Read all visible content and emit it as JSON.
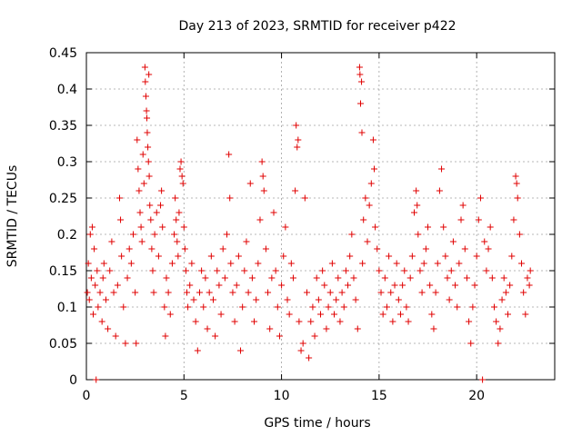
{
  "chart_data": {
    "type": "scatter",
    "title": "Day 213 of 2023, SRMTID for receiver p422",
    "xlabel": "GPS time / hours",
    "ylabel": "SRMTID / TECUs",
    "xlim": [
      0,
      24
    ],
    "ylim": [
      0,
      0.45
    ],
    "xticks": [
      0,
      5,
      10,
      15,
      20
    ],
    "xtick_labels": [
      "0",
      "5",
      "10",
      "15",
      "20"
    ],
    "yticks": [
      0,
      0.05,
      0.1,
      0.15,
      0.2,
      0.25,
      0.3,
      0.35,
      0.4,
      0.45
    ],
    "ytick_labels": [
      "0",
      "0.05",
      "0.1",
      "0.15",
      "0.2",
      "0.25",
      "0.3",
      "0.35",
      "0.4",
      "0.45"
    ],
    "grid": true,
    "marker": "+",
    "marker_color": "#e00000",
    "series": [
      {
        "name": "SRMTID",
        "points": [
          [
            0.05,
            0.12
          ],
          [
            0.1,
            0.16
          ],
          [
            0.15,
            0.11
          ],
          [
            0.2,
            0.2
          ],
          [
            0.25,
            0.14
          ],
          [
            0.3,
            0.21
          ],
          [
            0.35,
            0.09
          ],
          [
            0.4,
            0.18
          ],
          [
            0.45,
            0.13
          ],
          [
            0.5,
            0.0
          ],
          [
            0.55,
            0.15
          ],
          [
            0.6,
            0.1
          ],
          [
            0.7,
            0.12
          ],
          [
            0.8,
            0.08
          ],
          [
            0.85,
            0.14
          ],
          [
            0.9,
            0.16
          ],
          [
            1.0,
            0.11
          ],
          [
            1.1,
            0.07
          ],
          [
            1.2,
            0.15
          ],
          [
            1.3,
            0.19
          ],
          [
            1.4,
            0.12
          ],
          [
            1.5,
            0.06
          ],
          [
            1.6,
            0.13
          ],
          [
            1.7,
            0.25
          ],
          [
            1.75,
            0.22
          ],
          [
            1.8,
            0.17
          ],
          [
            1.9,
            0.1
          ],
          [
            2.0,
            0.05
          ],
          [
            2.1,
            0.14
          ],
          [
            2.2,
            0.18
          ],
          [
            2.3,
            0.16
          ],
          [
            2.4,
            0.2
          ],
          [
            2.5,
            0.12
          ],
          [
            2.55,
            0.05
          ],
          [
            2.6,
            0.33
          ],
          [
            2.65,
            0.29
          ],
          [
            2.7,
            0.26
          ],
          [
            2.75,
            0.23
          ],
          [
            2.8,
            0.21
          ],
          [
            2.85,
            0.19
          ],
          [
            2.9,
            0.31
          ],
          [
            2.95,
            0.27
          ],
          [
            3.0,
            0.43
          ],
          [
            3.02,
            0.41
          ],
          [
            3.05,
            0.39
          ],
          [
            3.08,
            0.37
          ],
          [
            3.1,
            0.36
          ],
          [
            3.12,
            0.34
          ],
          [
            3.15,
            0.32
          ],
          [
            3.18,
            0.3
          ],
          [
            3.2,
            0.42
          ],
          [
            3.22,
            0.28
          ],
          [
            3.25,
            0.24
          ],
          [
            3.3,
            0.22
          ],
          [
            3.35,
            0.18
          ],
          [
            3.4,
            0.15
          ],
          [
            3.45,
            0.12
          ],
          [
            3.5,
            0.2
          ],
          [
            3.6,
            0.23
          ],
          [
            3.7,
            0.17
          ],
          [
            3.8,
            0.24
          ],
          [
            3.85,
            0.26
          ],
          [
            3.9,
            0.21
          ],
          [
            4.0,
            0.1
          ],
          [
            4.05,
            0.06
          ],
          [
            4.1,
            0.14
          ],
          [
            4.2,
            0.12
          ],
          [
            4.3,
            0.09
          ],
          [
            4.4,
            0.16
          ],
          [
            4.5,
            0.2
          ],
          [
            4.55,
            0.25
          ],
          [
            4.6,
            0.22
          ],
          [
            4.65,
            0.19
          ],
          [
            4.7,
            0.17
          ],
          [
            4.75,
            0.23
          ],
          [
            4.8,
            0.29
          ],
          [
            4.85,
            0.3
          ],
          [
            4.9,
            0.28
          ],
          [
            4.95,
            0.27
          ],
          [
            5.0,
            0.21
          ],
          [
            5.05,
            0.18
          ],
          [
            5.1,
            0.15
          ],
          [
            5.15,
            0.12
          ],
          [
            5.2,
            0.1
          ],
          [
            5.3,
            0.13
          ],
          [
            5.4,
            0.16
          ],
          [
            5.5,
            0.11
          ],
          [
            5.6,
            0.08
          ],
          [
            5.7,
            0.04
          ],
          [
            5.8,
            0.12
          ],
          [
            5.9,
            0.15
          ],
          [
            6.0,
            0.1
          ],
          [
            6.1,
            0.14
          ],
          [
            6.2,
            0.07
          ],
          [
            6.3,
            0.12
          ],
          [
            6.4,
            0.17
          ],
          [
            6.5,
            0.11
          ],
          [
            6.6,
            0.06
          ],
          [
            6.7,
            0.15
          ],
          [
            6.8,
            0.13
          ],
          [
            6.9,
            0.09
          ],
          [
            7.0,
            0.18
          ],
          [
            7.1,
            0.14
          ],
          [
            7.2,
            0.2
          ],
          [
            7.3,
            0.31
          ],
          [
            7.35,
            0.25
          ],
          [
            7.4,
            0.16
          ],
          [
            7.5,
            0.12
          ],
          [
            7.6,
            0.08
          ],
          [
            7.7,
            0.13
          ],
          [
            7.8,
            0.17
          ],
          [
            7.9,
            0.04
          ],
          [
            8.0,
            0.1
          ],
          [
            8.1,
            0.15
          ],
          [
            8.2,
            0.19
          ],
          [
            8.3,
            0.12
          ],
          [
            8.4,
            0.27
          ],
          [
            8.5,
            0.14
          ],
          [
            8.6,
            0.08
          ],
          [
            8.7,
            0.11
          ],
          [
            8.8,
            0.16
          ],
          [
            8.9,
            0.22
          ],
          [
            9.0,
            0.3
          ],
          [
            9.05,
            0.28
          ],
          [
            9.1,
            0.26
          ],
          [
            9.2,
            0.18
          ],
          [
            9.3,
            0.12
          ],
          [
            9.4,
            0.07
          ],
          [
            9.5,
            0.14
          ],
          [
            9.6,
            0.23
          ],
          [
            9.7,
            0.15
          ],
          [
            9.8,
            0.1
          ],
          [
            9.9,
            0.06
          ],
          [
            10.0,
            0.13
          ],
          [
            10.1,
            0.17
          ],
          [
            10.2,
            0.21
          ],
          [
            10.3,
            0.11
          ],
          [
            10.4,
            0.09
          ],
          [
            10.5,
            0.16
          ],
          [
            10.6,
            0.14
          ],
          [
            10.7,
            0.26
          ],
          [
            10.75,
            0.35
          ],
          [
            10.8,
            0.32
          ],
          [
            10.85,
            0.33
          ],
          [
            10.9,
            0.08
          ],
          [
            11.0,
            0.04
          ],
          [
            11.1,
            0.05
          ],
          [
            11.2,
            0.25
          ],
          [
            11.3,
            0.12
          ],
          [
            11.4,
            0.03
          ],
          [
            11.5,
            0.08
          ],
          [
            11.6,
            0.1
          ],
          [
            11.7,
            0.06
          ],
          [
            11.8,
            0.14
          ],
          [
            11.9,
            0.11
          ],
          [
            12.0,
            0.09
          ],
          [
            12.1,
            0.15
          ],
          [
            12.2,
            0.13
          ],
          [
            12.3,
            0.07
          ],
          [
            12.4,
            0.1
          ],
          [
            12.5,
            0.12
          ],
          [
            12.6,
            0.16
          ],
          [
            12.7,
            0.09
          ],
          [
            12.8,
            0.11
          ],
          [
            12.9,
            0.14
          ],
          [
            13.0,
            0.08
          ],
          [
            13.1,
            0.12
          ],
          [
            13.2,
            0.1
          ],
          [
            13.3,
            0.15
          ],
          [
            13.4,
            0.13
          ],
          [
            13.5,
            0.17
          ],
          [
            13.6,
            0.2
          ],
          [
            13.7,
            0.14
          ],
          [
            13.8,
            0.11
          ],
          [
            13.9,
            0.07
          ],
          [
            14.0,
            0.43
          ],
          [
            14.02,
            0.42
          ],
          [
            14.05,
            0.38
          ],
          [
            14.1,
            0.41
          ],
          [
            14.12,
            0.34
          ],
          [
            14.15,
            0.16
          ],
          [
            14.2,
            0.22
          ],
          [
            14.3,
            0.25
          ],
          [
            14.4,
            0.19
          ],
          [
            14.5,
            0.24
          ],
          [
            14.6,
            0.27
          ],
          [
            14.7,
            0.33
          ],
          [
            14.75,
            0.29
          ],
          [
            14.8,
            0.21
          ],
          [
            14.9,
            0.18
          ],
          [
            15.0,
            0.15
          ],
          [
            15.1,
            0.12
          ],
          [
            15.2,
            0.09
          ],
          [
            15.3,
            0.14
          ],
          [
            15.4,
            0.1
          ],
          [
            15.5,
            0.17
          ],
          [
            15.6,
            0.12
          ],
          [
            15.7,
            0.08
          ],
          [
            15.8,
            0.13
          ],
          [
            15.9,
            0.16
          ],
          [
            16.0,
            0.11
          ],
          [
            16.1,
            0.09
          ],
          [
            16.2,
            0.13
          ],
          [
            16.3,
            0.15
          ],
          [
            16.4,
            0.1
          ],
          [
            16.5,
            0.08
          ],
          [
            16.6,
            0.14
          ],
          [
            16.7,
            0.17
          ],
          [
            16.8,
            0.23
          ],
          [
            16.9,
            0.26
          ],
          [
            16.95,
            0.24
          ],
          [
            17.0,
            0.2
          ],
          [
            17.1,
            0.15
          ],
          [
            17.2,
            0.12
          ],
          [
            17.3,
            0.16
          ],
          [
            17.4,
            0.18
          ],
          [
            17.5,
            0.21
          ],
          [
            17.6,
            0.13
          ],
          [
            17.7,
            0.09
          ],
          [
            17.8,
            0.07
          ],
          [
            17.9,
            0.12
          ],
          [
            18.0,
            0.16
          ],
          [
            18.1,
            0.26
          ],
          [
            18.2,
            0.29
          ],
          [
            18.3,
            0.21
          ],
          [
            18.4,
            0.17
          ],
          [
            18.5,
            0.14
          ],
          [
            18.6,
            0.11
          ],
          [
            18.7,
            0.15
          ],
          [
            18.8,
            0.19
          ],
          [
            18.9,
            0.13
          ],
          [
            19.0,
            0.1
          ],
          [
            19.1,
            0.16
          ],
          [
            19.2,
            0.22
          ],
          [
            19.3,
            0.24
          ],
          [
            19.4,
            0.18
          ],
          [
            19.5,
            0.14
          ],
          [
            19.6,
            0.08
          ],
          [
            19.7,
            0.05
          ],
          [
            19.8,
            0.1
          ],
          [
            19.9,
            0.13
          ],
          [
            20.0,
            0.17
          ],
          [
            20.1,
            0.22
          ],
          [
            20.2,
            0.25
          ],
          [
            20.3,
            0.0
          ],
          [
            20.4,
            0.19
          ],
          [
            20.5,
            0.15
          ],
          [
            20.6,
            0.18
          ],
          [
            20.7,
            0.21
          ],
          [
            20.8,
            0.14
          ],
          [
            20.9,
            0.1
          ],
          [
            21.0,
            0.08
          ],
          [
            21.1,
            0.05
          ],
          [
            21.2,
            0.07
          ],
          [
            21.3,
            0.11
          ],
          [
            21.4,
            0.14
          ],
          [
            21.5,
            0.12
          ],
          [
            21.6,
            0.09
          ],
          [
            21.7,
            0.13
          ],
          [
            21.8,
            0.17
          ],
          [
            21.9,
            0.22
          ],
          [
            22.0,
            0.28
          ],
          [
            22.05,
            0.27
          ],
          [
            22.1,
            0.25
          ],
          [
            22.2,
            0.2
          ],
          [
            22.3,
            0.16
          ],
          [
            22.4,
            0.12
          ],
          [
            22.5,
            0.09
          ],
          [
            22.6,
            0.14
          ],
          [
            22.7,
            0.13
          ],
          [
            22.75,
            0.15
          ]
        ]
      }
    ]
  }
}
